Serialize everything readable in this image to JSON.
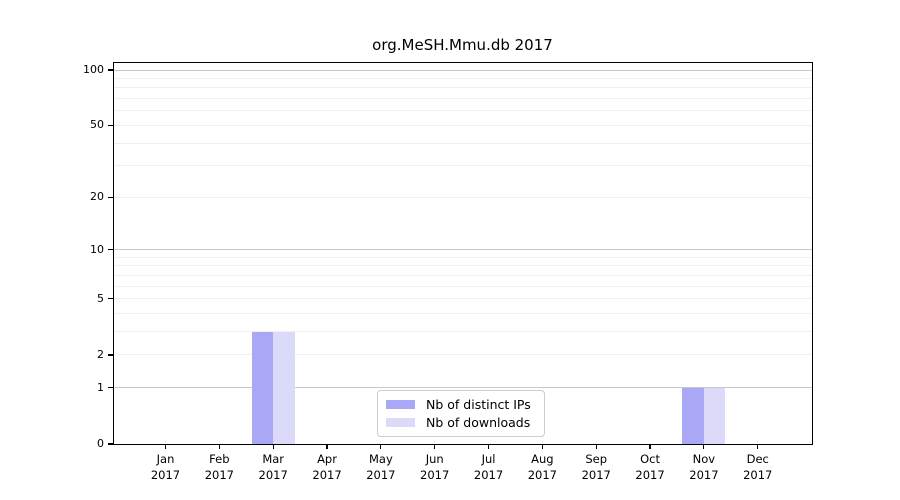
{
  "chart_data": {
    "type": "bar",
    "title": "org.MeSH.Mmu.db 2017",
    "x_months": [
      "Jan",
      "Feb",
      "Mar",
      "Apr",
      "May",
      "Jun",
      "Jul",
      "Aug",
      "Sep",
      "Oct",
      "Nov",
      "Dec"
    ],
    "x_year": "2017",
    "series": [
      {
        "name": "Nb of distinct IPs",
        "color": "#a8a8f6",
        "values": [
          0,
          0,
          3,
          0,
          0,
          0,
          0,
          0,
          0,
          0,
          1,
          0
        ]
      },
      {
        "name": "Nb of downloads",
        "color": "#dbdbf9",
        "values": [
          0,
          0,
          3,
          0,
          0,
          0,
          0,
          0,
          0,
          0,
          1,
          0
        ]
      }
    ],
    "y_axis": {
      "scale": "log1p",
      "tick_values": [
        0,
        1,
        2,
        5,
        10,
        20,
        50,
        100
      ],
      "tick_labels": [
        "0",
        "1",
        "2",
        "5",
        "10",
        "20",
        "50",
        "100"
      ],
      "major_gridlines": [
        1,
        10,
        100
      ],
      "minor_gridlines": [
        2,
        3,
        4,
        5,
        6,
        7,
        8,
        9,
        20,
        30,
        40,
        50,
        60,
        70,
        80,
        90
      ],
      "ylim": [
        0,
        110
      ]
    },
    "legend": {
      "position": "lower center",
      "items": [
        "Nb of distinct IPs",
        "Nb of downloads"
      ]
    },
    "grid": true
  },
  "colors": {
    "bar_distinct_ips": "#a8a8f6",
    "bar_downloads": "#dbdbf9",
    "major_grid": "#c9c9c9",
    "minor_grid": "#efefef",
    "axis": "#000000",
    "legend_border": "#cccccc",
    "background": "#ffffff"
  }
}
